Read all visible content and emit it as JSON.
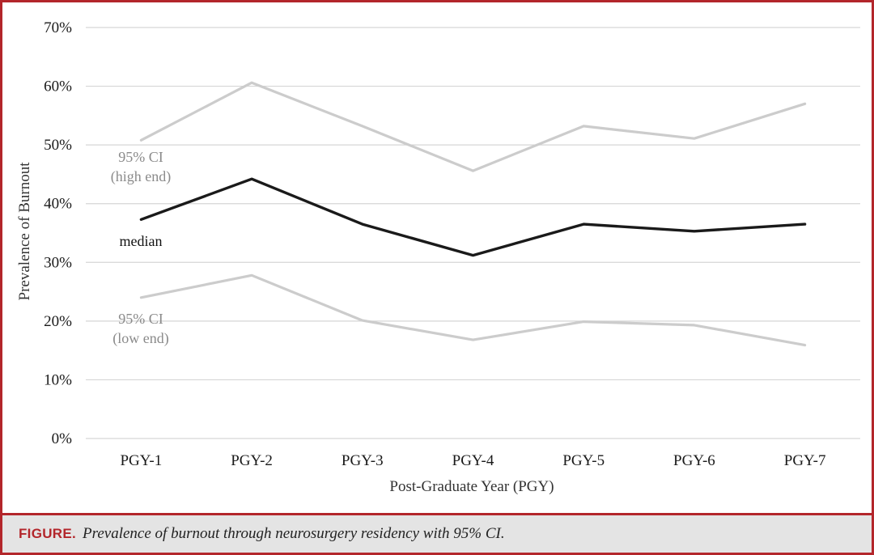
{
  "chart_data": {
    "type": "line",
    "categories": [
      "PGY-1",
      "PGY-2",
      "PGY-3",
      "PGY-4",
      "PGY-5",
      "PGY-6",
      "PGY-7"
    ],
    "series": [
      {
        "name": "95% CI (high end)",
        "values": [
          50.8,
          60.6,
          53.2,
          45.6,
          53.2,
          51.1,
          57.0
        ],
        "color": "#cccccc"
      },
      {
        "name": "median",
        "values": [
          37.3,
          44.2,
          36.5,
          31.2,
          36.5,
          35.3,
          36.5
        ],
        "color": "#1a1a1a"
      },
      {
        "name": "95% CI (low end)",
        "values": [
          24.0,
          27.8,
          20.1,
          16.8,
          19.9,
          19.3,
          15.9
        ],
        "color": "#cccccc"
      }
    ],
    "xlabel": "Post-Graduate Year (PGY)",
    "ylabel": "Prevalence of Burnout",
    "ylim": [
      0,
      70
    ],
    "yticks": [
      "0%",
      "10%",
      "20%",
      "30%",
      "40%",
      "50%",
      "60%",
      "70%"
    ],
    "grid": true,
    "annotations": {
      "ci_high_line1": "95% CI",
      "ci_high_line2": "(high end)",
      "median": "median",
      "ci_low_line1": "95% CI",
      "ci_low_line2": "(low end)"
    }
  },
  "caption": {
    "label": "FIGURE.",
    "text": "Prevalence of burnout through neurosurgery residency with 95% CI."
  },
  "colors": {
    "border": "#b3262b",
    "caption_background": "#e4e4e4",
    "grid": "#d6d6d6"
  }
}
